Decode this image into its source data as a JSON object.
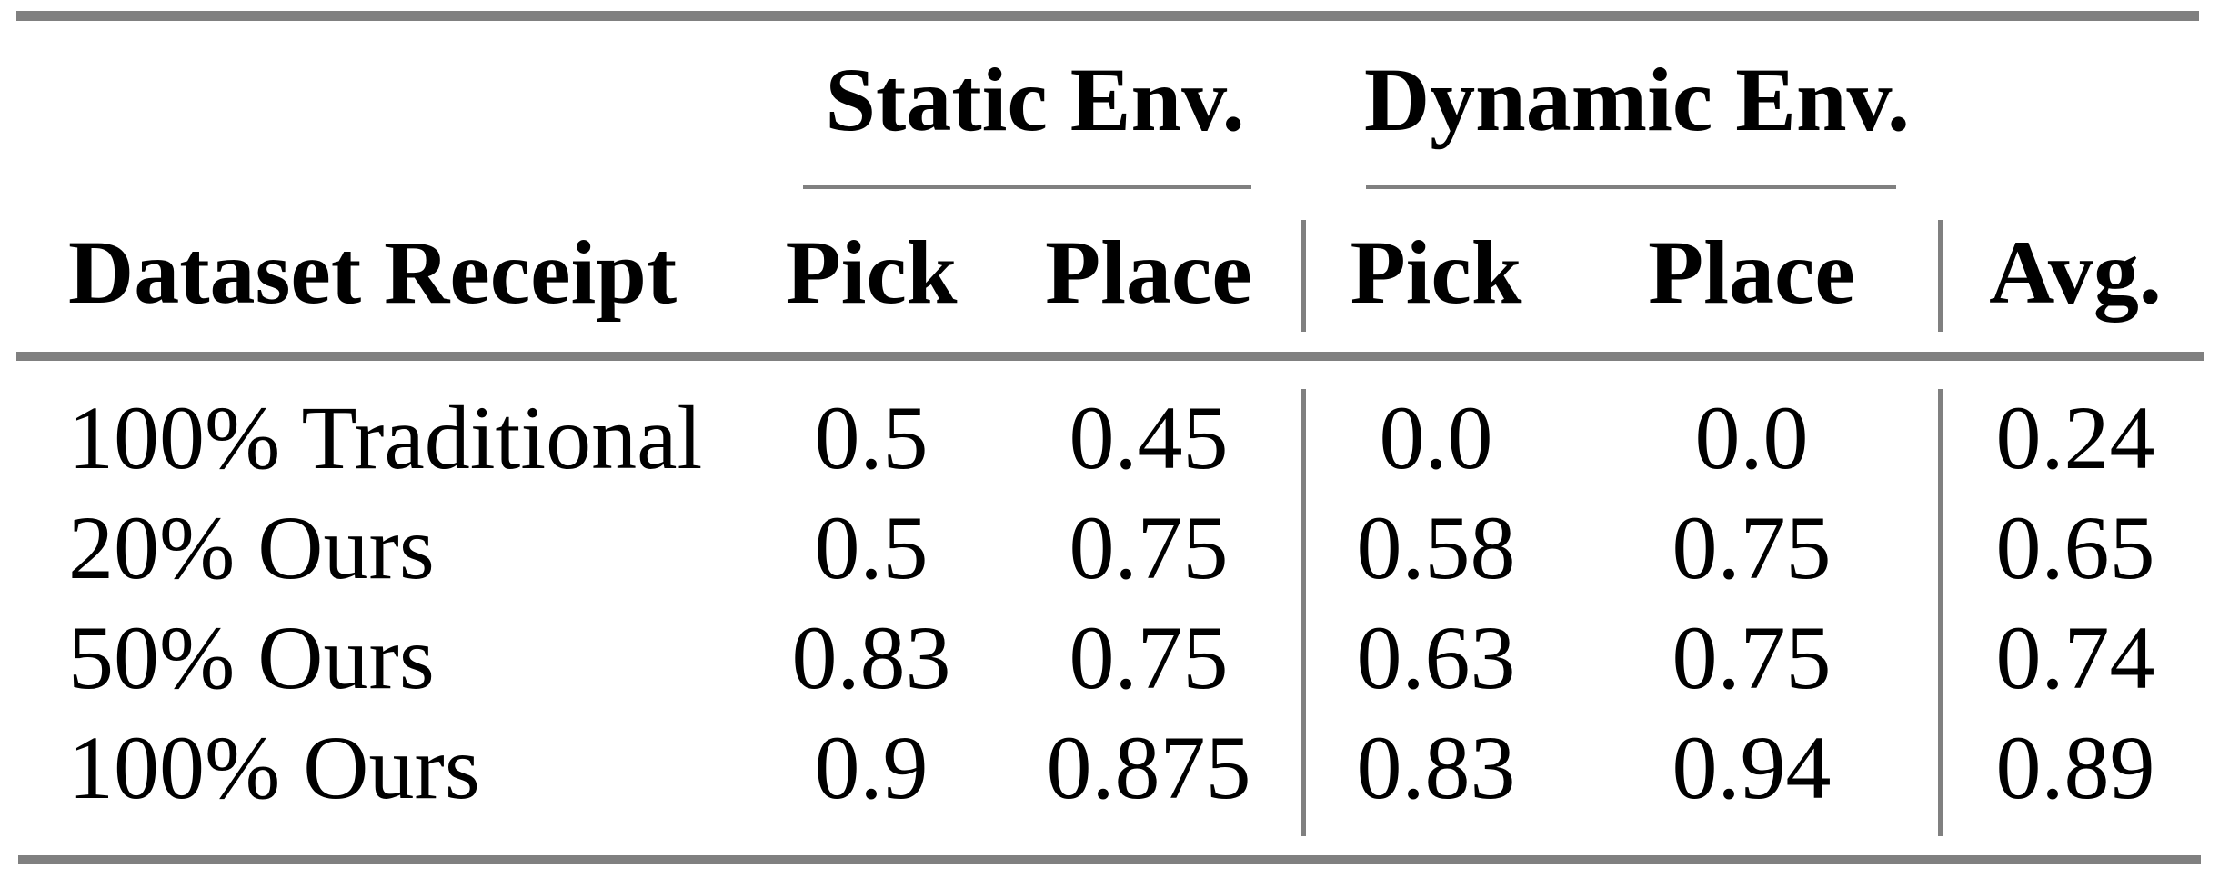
{
  "table": {
    "group_headers": [
      {
        "label": "Static Env."
      },
      {
        "label": "Dynamic Env."
      }
    ],
    "column_headers": {
      "row_header": "Dataset Receipt",
      "static_pick": "Pick",
      "static_place": "Place",
      "dynamic_pick": "Pick",
      "dynamic_place": "Place",
      "avg": "Avg."
    },
    "rows": [
      {
        "label": "100% Traditional",
        "static_pick": "0.5",
        "static_place": "0.45",
        "dynamic_pick": "0.0",
        "dynamic_place": "0.0",
        "avg": "0.24"
      },
      {
        "label": "20% Ours",
        "static_pick": "0.5",
        "static_place": "0.75",
        "dynamic_pick": "0.58",
        "dynamic_place": "0.75",
        "avg": "0.65"
      },
      {
        "label": "50% Ours",
        "static_pick": "0.83",
        "static_place": "0.75",
        "dynamic_pick": "0.63",
        "dynamic_place": "0.75",
        "avg": "0.74"
      },
      {
        "label": "100% Ours",
        "static_pick": "0.9",
        "static_place": "0.875",
        "dynamic_pick": "0.83",
        "dynamic_place": "0.94",
        "avg": "0.89"
      }
    ]
  },
  "style": {
    "rule_color": "#808080",
    "text_color": "#000000",
    "background_color": "#ffffff"
  },
  "chart_data": {
    "type": "table",
    "title": "",
    "columns": [
      "Dataset Receipt",
      "Static Env. Pick",
      "Static Env. Place",
      "Dynamic Env. Pick",
      "Dynamic Env. Place",
      "Avg."
    ],
    "rows": [
      [
        "100% Traditional",
        0.5,
        0.45,
        0.0,
        0.0,
        0.24
      ],
      [
        "20% Ours",
        0.5,
        0.75,
        0.58,
        0.75,
        0.65
      ],
      [
        "50% Ours",
        0.83,
        0.75,
        0.63,
        0.75,
        0.74
      ],
      [
        "100% Ours",
        0.9,
        0.875,
        0.83,
        0.94,
        0.89
      ]
    ]
  }
}
